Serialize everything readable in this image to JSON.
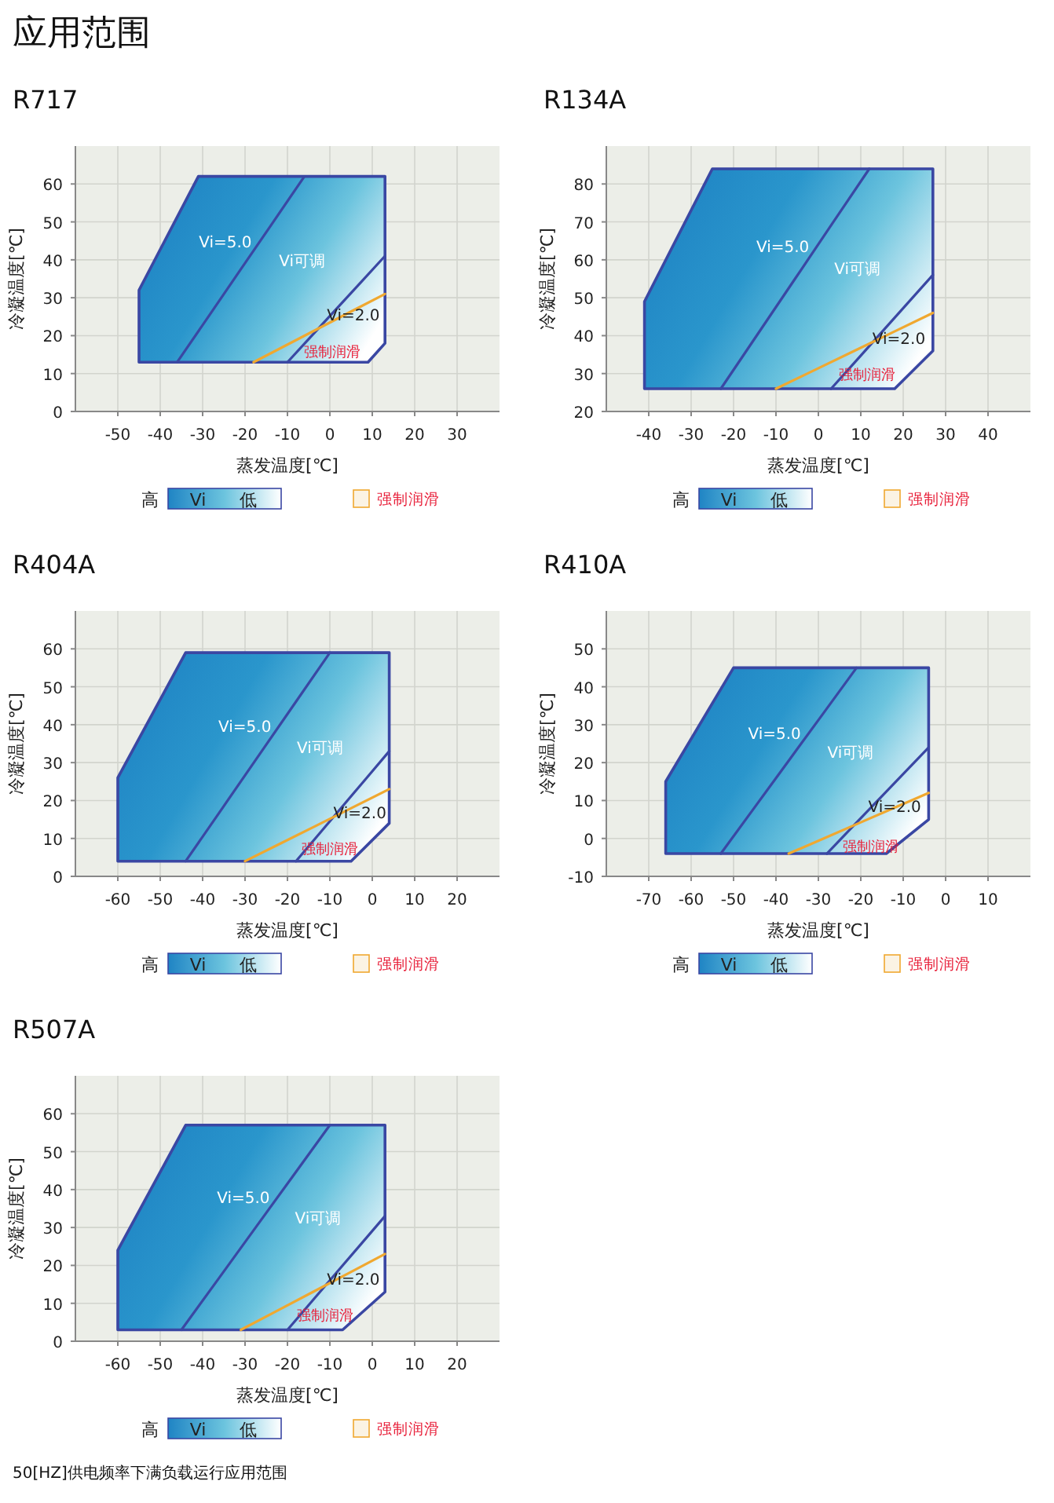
{
  "chart_data": [
    {
      "type": "line",
      "title": "R717",
      "xlabel": "蒸发温度[℃]",
      "ylabel": "冷凝温度[℃]",
      "xlim": [
        -60,
        40
      ],
      "ylim": [
        0,
        70
      ],
      "xticks": [
        -50,
        -40,
        -30,
        -20,
        -10,
        0,
        10,
        20,
        30
      ],
      "yticks": [
        0,
        10,
        20,
        30,
        40,
        50,
        60
      ],
      "grid": true,
      "legend": "bottom",
      "series": [
        {
          "name": "Vi",
          "type": "area",
          "color": "#3a47a3",
          "x": [
            -45,
            -45,
            -31,
            13,
            13,
            9,
            -45
          ],
          "values": [
            13,
            32,
            62,
            62,
            18,
            13,
            13
          ]
        },
        {
          "type": "line",
          "color": "#3a47a3",
          "x": [
            -36,
            -6
          ],
          "values": [
            13,
            62
          ]
        },
        {
          "type": "line",
          "color": "#3a47a3",
          "x": [
            -10,
            13
          ],
          "values": [
            13,
            41
          ]
        },
        {
          "name": "强制润滑",
          "type": "line",
          "color": "#f0a830",
          "x": [
            -18,
            13
          ],
          "values": [
            13,
            31
          ]
        }
      ],
      "annotations": [
        "高",
        "低",
        "应用范围",
        "Vi=5.0",
        "Vi可调",
        "Vi=2.0",
        "强制润滑"
      ]
    },
    {
      "type": "line",
      "title": "R134A",
      "xlabel": "蒸发温度[℃]",
      "ylabel": "冷凝温度[℃]",
      "xlim": [
        -50,
        50
      ],
      "ylim": [
        20,
        90
      ],
      "xticks": [
        -40,
        -30,
        -20,
        -10,
        0,
        10,
        20,
        30,
        40
      ],
      "yticks": [
        20,
        30,
        40,
        50,
        60,
        70,
        80
      ],
      "grid": true,
      "legend": "bottom",
      "series": [
        {
          "name": "Vi",
          "type": "area",
          "color": "#3a47a3",
          "x": [
            -41,
            -41,
            -25,
            27,
            27,
            18,
            -41
          ],
          "values": [
            26,
            49,
            84,
            84,
            36,
            26,
            26
          ]
        },
        {
          "type": "line",
          "color": "#3a47a3",
          "x": [
            -23,
            12
          ],
          "values": [
            26,
            84
          ]
        },
        {
          "type": "line",
          "color": "#3a47a3",
          "x": [
            3,
            27
          ],
          "values": [
            26,
            56
          ]
        },
        {
          "name": "强制润滑",
          "type": "line",
          "color": "#f0a830",
          "x": [
            -10,
            27
          ],
          "values": [
            26,
            46
          ]
        }
      ],
      "annotations": [
        "高",
        "低",
        "Vi=5.0",
        "Vi可调",
        "Vi=2.0",
        "强制润滑"
      ]
    },
    {
      "type": "line",
      "title": "R404A",
      "xlabel": "蒸发温度[℃]",
      "ylabel": "冷凝温度[℃]",
      "xlim": [
        -70,
        30
      ],
      "ylim": [
        0,
        70
      ],
      "xticks": [
        -60,
        -50,
        -40,
        -30,
        -20,
        -10,
        0,
        10,
        20
      ],
      "yticks": [
        0,
        10,
        20,
        30,
        40,
        50,
        60
      ],
      "grid": true,
      "legend": "bottom",
      "series": [
        {
          "name": "Vi",
          "type": "area",
          "color": "#3a47a3",
          "x": [
            -60,
            -60,
            -44,
            4,
            4,
            -5,
            -60
          ],
          "values": [
            4,
            26,
            59,
            59,
            14,
            4,
            4
          ]
        },
        {
          "type": "line",
          "color": "#3a47a3",
          "x": [
            -44,
            -10
          ],
          "values": [
            4,
            59
          ]
        },
        {
          "type": "line",
          "color": "#3a47a3",
          "x": [
            -18,
            4
          ],
          "values": [
            4,
            33
          ]
        },
        {
          "name": "强制润滑",
          "type": "line",
          "color": "#f0a830",
          "x": [
            -30,
            4
          ],
          "values": [
            4,
            23
          ]
        }
      ],
      "annotations": [
        "高",
        "低",
        "Vi=5.0",
        "Vi可调",
        "Vi=2.0",
        "强制润滑"
      ]
    },
    {
      "type": "line",
      "title": "R410A",
      "xlabel": "蒸发温度[℃]",
      "ylabel": "冷凝温度[℃]",
      "xlim": [
        -80,
        20
      ],
      "ylim": [
        -10,
        60
      ],
      "xticks": [
        -70,
        -60,
        -50,
        -40,
        -30,
        -20,
        -10,
        0,
        10
      ],
      "yticks": [
        -10,
        0,
        10,
        20,
        30,
        40,
        50
      ],
      "grid": true,
      "legend": "bottom",
      "series": [
        {
          "name": "Vi",
          "type": "area",
          "color": "#3a47a3",
          "x": [
            -66,
            -66,
            -50,
            -4,
            -4,
            -14,
            -66
          ],
          "values": [
            -4,
            15,
            45,
            45,
            5,
            -4,
            -4
          ]
        },
        {
          "type": "line",
          "color": "#3a47a3",
          "x": [
            -53,
            -21
          ],
          "values": [
            -4,
            45
          ]
        },
        {
          "type": "line",
          "color": "#3a47a3",
          "x": [
            -28,
            -4
          ],
          "values": [
            -4,
            24
          ]
        },
        {
          "name": "强制润滑",
          "type": "line",
          "color": "#f0a830",
          "x": [
            -37,
            -4
          ],
          "values": [
            -4,
            12
          ]
        }
      ],
      "annotations": [
        "高",
        "低",
        "Vi=5.0",
        "Vi可调",
        "Vi=2.0",
        "强制润滑"
      ]
    },
    {
      "type": "line",
      "title": "R507A",
      "xlabel": "蒸发温度[℃]",
      "ylabel": "冷凝温度[℃]",
      "xlim": [
        -70,
        30
      ],
      "ylim": [
        0,
        70
      ],
      "xticks": [
        -60,
        -50,
        -40,
        -30,
        -20,
        -10,
        0,
        10,
        20
      ],
      "yticks": [
        0,
        10,
        20,
        30,
        40,
        50,
        60
      ],
      "grid": true,
      "legend": "bottom",
      "series": [
        {
          "name": "Vi",
          "type": "area",
          "color": "#3a47a3",
          "x": [
            -60,
            -60,
            -44,
            3,
            3,
            -7,
            -60
          ],
          "values": [
            3,
            24,
            57,
            57,
            13,
            3,
            3
          ]
        },
        {
          "type": "line",
          "color": "#3a47a3",
          "x": [
            -45,
            -10
          ],
          "values": [
            3,
            57
          ]
        },
        {
          "type": "line",
          "color": "#3a47a3",
          "x": [
            -20,
            3
          ],
          "values": [
            3,
            33
          ]
        },
        {
          "name": "强制润滑",
          "type": "line",
          "color": "#f0a830",
          "x": [
            -31,
            3
          ],
          "values": [
            3,
            23
          ]
        }
      ],
      "annotations": [
        "高",
        "低",
        "50[HZ]供电频率下满负载运行应用范围",
        "Vi=5.0",
        "Vi可调",
        "Vi=2.0",
        "强制润滑"
      ]
    }
  ]
}
